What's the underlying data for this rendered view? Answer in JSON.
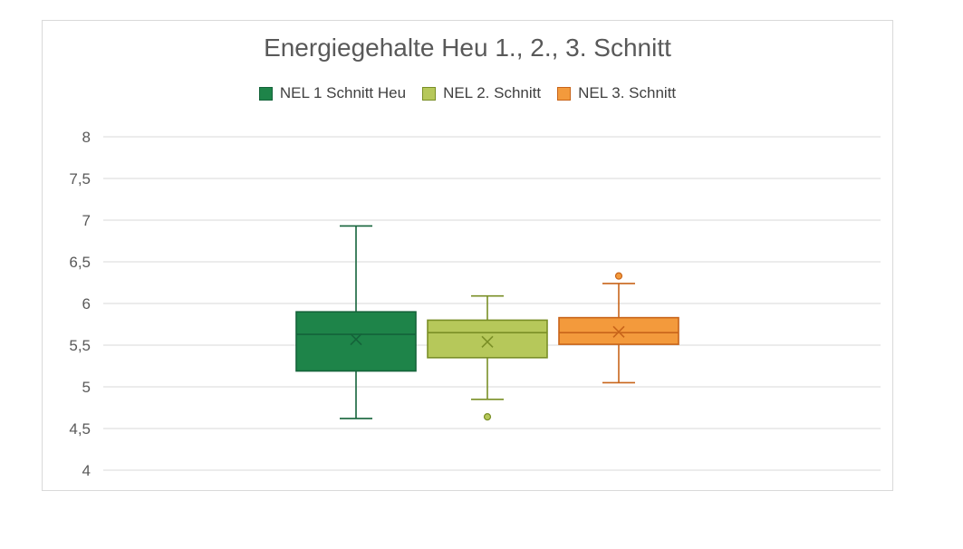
{
  "chart_data": {
    "type": "boxplot",
    "title": "Energiegehalte Heu 1., 2., 3. Schnitt",
    "xlabel": "",
    "ylabel": "",
    "ylim": [
      4,
      8
    ],
    "y_ticks": [
      "4",
      "4,5",
      "5",
      "5,5",
      "6",
      "6,5",
      "7",
      "7,5",
      "8"
    ],
    "y_tick_values": [
      4,
      4.5,
      5,
      5.5,
      6,
      6.5,
      7,
      7.5,
      8
    ],
    "grid": true,
    "legend_position": "top",
    "series": [
      {
        "name": "NEL 1 Schnitt Heu",
        "min": 4.62,
        "q1": 5.19,
        "median": 5.63,
        "mean": 5.57,
        "q3": 5.9,
        "max": 6.93,
        "outliers": [],
        "fill": "#1e8449",
        "stroke": "#14633a"
      },
      {
        "name": "NEL 2. Schnitt",
        "min": 4.85,
        "q1": 5.35,
        "median": 5.65,
        "mean": 5.54,
        "q3": 5.8,
        "max": 6.09,
        "outliers": [
          4.64
        ],
        "fill": "#b6c85a",
        "stroke": "#7a8f26"
      },
      {
        "name": "NEL 3. Schnitt",
        "min": 5.05,
        "q1": 5.51,
        "median": 5.65,
        "mean": 5.66,
        "q3": 5.83,
        "max": 6.24,
        "outliers": [
          6.33
        ],
        "fill": "#f39a3c",
        "stroke": "#c8641a"
      }
    ]
  }
}
